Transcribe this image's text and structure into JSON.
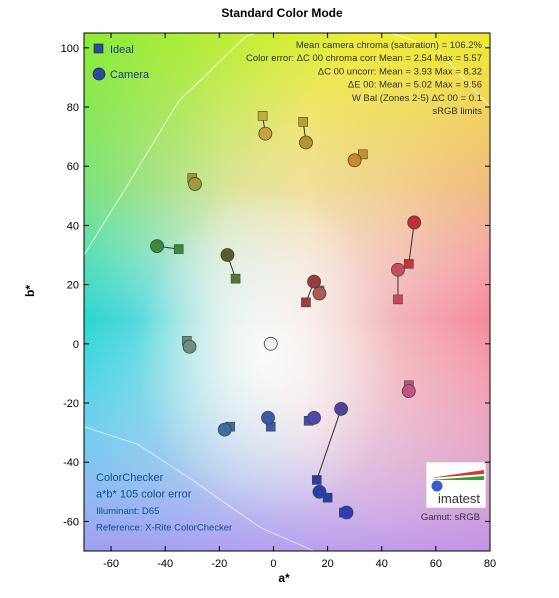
{
  "chart_data": {
    "type": "scatter",
    "title": "Standard Color Mode",
    "xlabel": "a*",
    "ylabel": "b*",
    "xlim": [
      -70,
      80
    ],
    "ylim": [
      -70,
      105
    ],
    "xticks": [
      -60,
      -40,
      -20,
      0,
      20,
      40,
      60,
      80
    ],
    "yticks": [
      -60,
      -40,
      -20,
      0,
      20,
      40,
      60,
      80,
      100
    ],
    "grid": false,
    "legend_position": "top-left",
    "series": [
      {
        "name": "Ideal",
        "marker": "square",
        "points": [
          {
            "x": -30,
            "y": 56,
            "color": "#9a9a3c"
          },
          {
            "x": -35,
            "y": 32,
            "color": "#3a8a3a"
          },
          {
            "x": -14,
            "y": 22,
            "color": "#4e7a34"
          },
          {
            "x": -4,
            "y": 77,
            "color": "#c4ae34"
          },
          {
            "x": 11,
            "y": 75,
            "color": "#b8a32e"
          },
          {
            "x": 33,
            "y": 64,
            "color": "#c89028"
          },
          {
            "x": 12,
            "y": 14,
            "color": "#9a3e3e"
          },
          {
            "x": 17,
            "y": 18,
            "color": "#a85050"
          },
          {
            "x": 46,
            "y": 15,
            "color": "#cc4656"
          },
          {
            "x": 50,
            "y": 27,
            "color": "#c8303c"
          },
          {
            "x": 50,
            "y": -14,
            "color": "#c84c84"
          },
          {
            "x": -32,
            "y": 1,
            "color": "#6a8a74"
          },
          {
            "x": -16,
            "y": -28,
            "color": "#3a6ea0"
          },
          {
            "x": -1,
            "y": -28,
            "color": "#3a5aa8"
          },
          {
            "x": 13,
            "y": -26,
            "color": "#4c48a8"
          },
          {
            "x": 16,
            "y": -46,
            "color": "#2a3ca4"
          },
          {
            "x": 20,
            "y": -52,
            "color": "#2440a8"
          },
          {
            "x": 26,
            "y": -57,
            "color": "#2c3cb4"
          }
        ]
      },
      {
        "name": "Camera",
        "marker": "circle",
        "points": [
          {
            "x": -29,
            "y": 54,
            "color": "#9c9c3e"
          },
          {
            "x": -43,
            "y": 33,
            "color": "#3a8c3c"
          },
          {
            "x": -17,
            "y": 30,
            "color": "#5a5a2c"
          },
          {
            "x": -3,
            "y": 71,
            "color": "#c8a438"
          },
          {
            "x": 12,
            "y": 68,
            "color": "#b49630"
          },
          {
            "x": 30,
            "y": 62,
            "color": "#c88a2a"
          },
          {
            "x": 15,
            "y": 21,
            "color": "#9a3c3a"
          },
          {
            "x": 17,
            "y": 17,
            "color": "#b05a54"
          },
          {
            "x": 46,
            "y": 25,
            "color": "#cc4c5c"
          },
          {
            "x": 52,
            "y": 41,
            "color": "#c82a36"
          },
          {
            "x": 50,
            "y": -16,
            "color": "#c45284"
          },
          {
            "x": -31,
            "y": -1,
            "color": "#6e8e7a"
          },
          {
            "x": -18,
            "y": -29,
            "color": "#3c6ea4"
          },
          {
            "x": -2,
            "y": -25,
            "color": "#3c5aac"
          },
          {
            "x": 15,
            "y": -25,
            "color": "#5048ac"
          },
          {
            "x": 25,
            "y": -22,
            "color": "#5040a0"
          },
          {
            "x": 17,
            "y": -50,
            "color": "#2a3caa"
          },
          {
            "x": 27,
            "y": -57,
            "color": "#2c3cb6"
          },
          {
            "x": -1,
            "y": 0,
            "color": "#f0f0f0"
          }
        ]
      }
    ],
    "stats_box": {
      "lines": [
        "Mean camera chroma (saturation) = 106.2%",
        "Color error: ΔC 00 chroma corr   Mean = 2.54   Max = 5.57",
        "ΔC 00 uncorr:   Mean = 3.93   Max = 8.32",
        "ΔE 00:   Mean = 5.02   Max = 9.56",
        "W Bal (Zones 2-5) ΔC 00 = 0.1",
        "sRGB limits"
      ]
    },
    "bottom_left_text": [
      "ColorChecker",
      "a*b* 105 color error",
      "Illuminant: D65",
      "Reference: X-Rite ColorChecker"
    ],
    "bottom_right_text": "Gamut: sRGB",
    "logo": "imatest"
  }
}
